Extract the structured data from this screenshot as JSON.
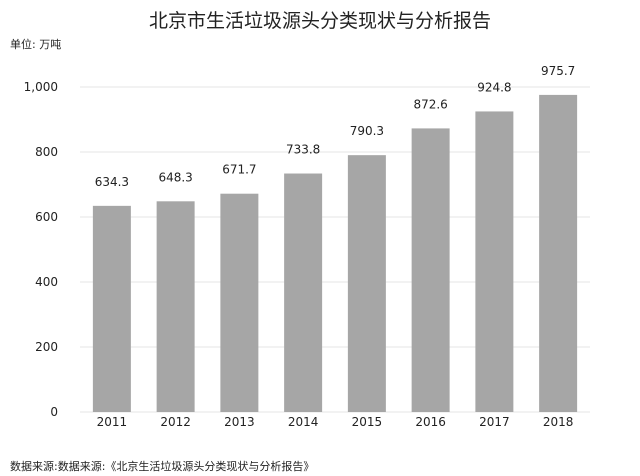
{
  "chart_data": {
    "type": "bar",
    "title": "北京市生活垃圾源头分类现状与分析报告",
    "unit": "单位: 万吨",
    "categories": [
      "2011",
      "2012",
      "2013",
      "2014",
      "2015",
      "2016",
      "2017",
      "2018"
    ],
    "values": [
      634.3,
      648.3,
      671.7,
      733.8,
      790.3,
      872.6,
      924.8,
      975.7
    ],
    "data_labels": [
      "634.3",
      "648.3",
      "671.7",
      "733.8",
      "790.3",
      "872.6",
      "924.8",
      "975.7"
    ],
    "ylim": [
      0,
      1000
    ],
    "yticks": [
      0,
      200,
      400,
      600,
      800,
      1000
    ],
    "ytick_labels": [
      "0",
      "200",
      "400",
      "600",
      "800",
      "1,000"
    ],
    "grid": true,
    "bar_color": "#a6a6a6",
    "grid_color": "#e6e6e6",
    "source": "数据来源:数据来源:《北京生活垃圾源头分类现状与分析报告》"
  }
}
